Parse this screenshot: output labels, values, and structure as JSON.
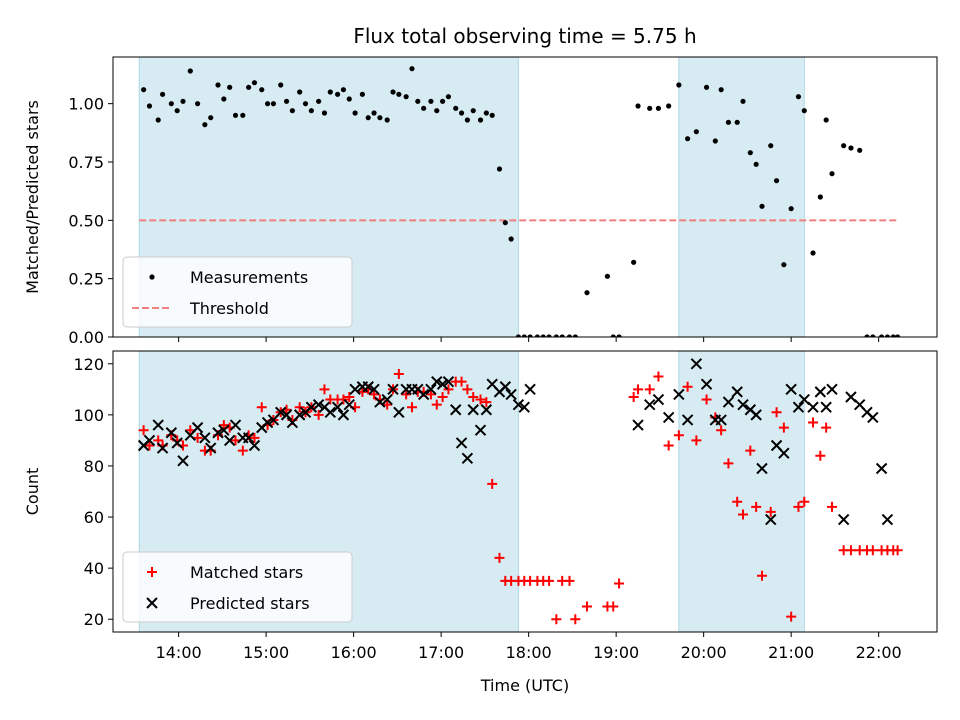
{
  "title": "Flux total observing time = 5.75 h",
  "colors": {
    "shade": "#add8e6",
    "threshold": "#f08080",
    "matched": "#ff0000",
    "predicted": "#000000",
    "measurement": "#000000"
  },
  "chart_data": [
    {
      "type": "scatter",
      "ylabel": "Matched/Predicted stars",
      "ylim": [
        0,
        1.2
      ],
      "xlim": [
        "13:15",
        "22:40"
      ],
      "ytick_values": [
        0.0,
        0.25,
        0.5,
        0.75,
        1.0
      ],
      "ytick_labels": [
        "0.00",
        "0.25",
        "0.50",
        "0.75",
        "1.00"
      ],
      "shaded_intervals": [
        [
          "13:33",
          "17:53"
        ],
        [
          "19:43",
          "21:09"
        ]
      ],
      "threshold": {
        "value": 0.5,
        "from": "13:33",
        "to": "22:13",
        "label": "Threshold"
      },
      "legend": {
        "placement": "lower-left",
        "entries": [
          "Measurements",
          "Threshold"
        ]
      },
      "series": [
        {
          "name": "Measurements",
          "x": [
            "13:36",
            "13:40",
            "13:46",
            "13:49",
            "13:55",
            "13:59",
            "14:03",
            "14:08",
            "14:13",
            "14:18",
            "14:22",
            "14:27",
            "14:31",
            "14:35",
            "14:39",
            "14:44",
            "14:48",
            "14:52",
            "14:57",
            "15:01",
            "15:05",
            "15:10",
            "15:14",
            "15:18",
            "15:23",
            "15:27",
            "15:31",
            "15:36",
            "15:40",
            "15:44",
            "15:49",
            "15:53",
            "15:57",
            "16:01",
            "16:06",
            "16:10",
            "16:14",
            "16:18",
            "16:23",
            "16:27",
            "16:31",
            "16:36",
            "16:40",
            "16:44",
            "16:48",
            "16:53",
            "16:57",
            "17:01",
            "17:05",
            "17:10",
            "17:14",
            "17:18",
            "17:22",
            "17:27",
            "17:31",
            "17:35",
            "17:40",
            "17:44",
            "17:48",
            "17:53",
            "17:57",
            "18:01",
            "18:06",
            "18:10",
            "18:14",
            "18:19",
            "18:23",
            "18:28",
            "18:32",
            "18:40",
            "18:54",
            "18:58",
            "19:02",
            "19:12",
            "19:15",
            "19:23",
            "19:29",
            "19:36",
            "19:43",
            "19:49",
            "19:55",
            "20:02",
            "20:08",
            "20:12",
            "20:17",
            "20:23",
            "20:27",
            "20:32",
            "20:36",
            "20:40",
            "20:46",
            "20:50",
            "20:55",
            "21:00",
            "21:05",
            "21:09",
            "21:15",
            "21:20",
            "21:24",
            "21:28",
            "21:36",
            "21:41",
            "21:47",
            "21:52",
            "21:56",
            "22:02",
            "22:06",
            "22:10",
            "22:13"
          ],
          "y": [
            1.06,
            0.99,
            0.93,
            1.04,
            1.0,
            0.97,
            1.01,
            1.14,
            1.0,
            0.91,
            0.94,
            1.08,
            1.02,
            1.07,
            0.95,
            0.95,
            1.07,
            1.09,
            1.06,
            1.0,
            1.0,
            1.08,
            1.01,
            0.97,
            1.05,
            1.0,
            0.97,
            1.01,
            0.96,
            1.05,
            1.04,
            1.06,
            1.02,
            0.96,
            1.04,
            0.94,
            0.96,
            0.94,
            0.93,
            1.05,
            1.04,
            1.03,
            1.15,
            1.01,
            0.98,
            1.01,
            0.97,
            1.01,
            1.03,
            0.98,
            0.96,
            0.93,
            0.97,
            0.93,
            0.96,
            0.95,
            0.72,
            0.49,
            0.42,
            0.0,
            0.0,
            0.0,
            0.0,
            0.0,
            0.0,
            0.0,
            0.0,
            0.0,
            0.0,
            0.19,
            0.26,
            0.0,
            0.0,
            0.32,
            0.99,
            0.98,
            0.98,
            0.99,
            1.08,
            0.85,
            0.88,
            1.07,
            0.84,
            1.06,
            0.92,
            0.92,
            1.01,
            0.79,
            0.74,
            0.56,
            0.82,
            0.67,
            0.31,
            0.55,
            1.03,
            0.97,
            0.36,
            0.6,
            0.93,
            0.7,
            0.82,
            0.81,
            0.8,
            0.0,
            0.0,
            0.0,
            0.0,
            0.0,
            0.0
          ]
        }
      ]
    },
    {
      "type": "scatter",
      "xlabel": "Time (UTC)",
      "ylabel": "Count",
      "ylim": [
        15,
        125
      ],
      "xlim": [
        "13:15",
        "22:40"
      ],
      "ytick_values": [
        20,
        40,
        60,
        80,
        100,
        120
      ],
      "ytick_labels": [
        "20",
        "40",
        "60",
        "80",
        "100",
        "120"
      ],
      "xtick_values": [
        "14:00",
        "15:00",
        "16:00",
        "17:00",
        "18:00",
        "19:00",
        "20:00",
        "21:00",
        "22:00"
      ],
      "xtick_labels": [
        "14:00",
        "15:00",
        "16:00",
        "17:00",
        "18:00",
        "19:00",
        "20:00",
        "21:00",
        "22:00"
      ],
      "shaded_intervals": [
        [
          "13:33",
          "17:53"
        ],
        [
          "19:43",
          "21:09"
        ]
      ],
      "legend": {
        "placement": "lower-left",
        "entries": [
          "Matched stars",
          "Predicted stars"
        ]
      },
      "series": [
        {
          "name": "Matched stars",
          "marker": "plus",
          "x": [
            "13:36",
            "13:40",
            "13:46",
            "13:49",
            "13:55",
            "13:59",
            "14:03",
            "14:08",
            "14:13",
            "14:18",
            "14:22",
            "14:27",
            "14:31",
            "14:35",
            "14:39",
            "14:44",
            "14:48",
            "14:52",
            "14:57",
            "15:01",
            "15:05",
            "15:10",
            "15:14",
            "15:18",
            "15:23",
            "15:27",
            "15:31",
            "15:36",
            "15:40",
            "15:44",
            "15:49",
            "15:53",
            "15:57",
            "16:01",
            "16:06",
            "16:10",
            "16:14",
            "16:18",
            "16:23",
            "16:27",
            "16:31",
            "16:36",
            "16:40",
            "16:44",
            "16:48",
            "16:53",
            "16:57",
            "17:01",
            "17:05",
            "17:10",
            "17:14",
            "17:18",
            "17:22",
            "17:27",
            "17:31",
            "17:35",
            "17:40",
            "17:44",
            "17:48",
            "17:53",
            "17:57",
            "18:01",
            "18:06",
            "18:10",
            "18:14",
            "18:19",
            "18:23",
            "18:28",
            "18:32",
            "18:40",
            "18:54",
            "18:58",
            "19:02",
            "19:12",
            "19:15",
            "19:23",
            "19:29",
            "19:36",
            "19:43",
            "19:49",
            "19:55",
            "20:02",
            "20:08",
            "20:12",
            "20:17",
            "20:23",
            "20:27",
            "20:32",
            "20:36",
            "20:40",
            "20:46",
            "20:50",
            "20:55",
            "21:00",
            "21:05",
            "21:09",
            "21:15",
            "21:20",
            "21:24",
            "21:28",
            "21:36",
            "21:41",
            "21:47",
            "21:52",
            "21:56",
            "22:02",
            "22:06",
            "22:10",
            "22:13"
          ],
          "y": [
            94,
            88,
            90,
            88,
            92,
            90,
            88,
            94,
            91,
            86,
            86,
            92,
            96,
            95,
            90,
            86,
            92,
            91,
            103,
            96,
            98,
            101,
            102,
            98,
            103,
            101,
            103,
            100,
            110,
            106,
            106,
            106,
            107,
            103,
            109,
            110,
            108,
            106,
            104,
            110,
            116,
            108,
            103,
            109,
            109,
            108,
            104,
            107,
            110,
            113,
            113,
            110,
            107,
            106,
            105,
            73,
            44,
            35,
            35,
            35,
            35,
            35,
            35,
            35,
            35,
            20,
            35,
            35,
            20,
            25,
            25,
            25,
            34,
            107,
            110,
            110,
            115,
            88,
            92,
            111,
            90,
            106,
            99,
            94,
            81,
            66,
            61,
            86,
            64,
            37,
            62,
            101,
            95,
            21,
            64,
            66,
            97,
            84,
            95,
            64,
            47,
            47,
            47,
            47,
            47,
            47,
            47,
            47,
            47
          ]
        },
        {
          "name": "Predicted stars",
          "marker": "x",
          "x": [
            "13:36",
            "13:40",
            "13:46",
            "13:49",
            "13:55",
            "13:59",
            "14:03",
            "14:08",
            "14:13",
            "14:18",
            "14:22",
            "14:27",
            "14:31",
            "14:35",
            "14:39",
            "14:44",
            "14:48",
            "14:52",
            "14:57",
            "15:01",
            "15:05",
            "15:10",
            "15:14",
            "15:18",
            "15:23",
            "15:27",
            "15:31",
            "15:36",
            "15:40",
            "15:44",
            "15:49",
            "15:53",
            "15:57",
            "16:01",
            "16:06",
            "16:10",
            "16:14",
            "16:18",
            "16:23",
            "16:27",
            "16:31",
            "16:36",
            "16:40",
            "16:44",
            "16:48",
            "16:53",
            "16:57",
            "17:01",
            "17:05",
            "17:10",
            "17:14",
            "17:18",
            "17:22",
            "17:27",
            "17:31",
            "17:35",
            "17:40",
            "17:44",
            "17:48",
            "17:53",
            "17:57",
            "18:01",
            "19:15",
            "19:23",
            "19:29",
            "19:36",
            "19:43",
            "19:49",
            "19:55",
            "20:02",
            "20:08",
            "20:12",
            "20:17",
            "20:23",
            "20:27",
            "20:32",
            "20:36",
            "20:40",
            "20:46",
            "20:50",
            "20:55",
            "21:00",
            "21:05",
            "21:09",
            "21:15",
            "21:20",
            "21:24",
            "21:28",
            "21:36",
            "21:41",
            "21:47",
            "21:52",
            "21:56",
            "22:02",
            "22:06"
          ],
          "y": [
            88,
            90,
            96,
            87,
            93,
            89,
            82,
            92,
            95,
            91,
            87,
            93,
            94,
            90,
            96,
            91,
            91,
            88,
            95,
            97,
            98,
            101,
            100,
            97,
            100,
            101,
            103,
            104,
            103,
            101,
            103,
            100,
            104,
            110,
            111,
            111,
            110,
            105,
            106,
            110,
            101,
            110,
            110,
            110,
            108,
            110,
            113,
            112,
            113,
            102,
            89,
            83,
            102,
            94,
            102,
            112,
            109,
            111,
            108,
            104,
            103,
            110,
            96,
            104,
            106,
            99,
            108,
            98,
            120,
            112,
            98,
            98,
            105,
            109,
            104,
            102,
            100,
            79,
            59,
            88,
            85,
            110,
            103,
            106,
            103,
            109,
            103,
            110,
            59,
            107,
            104,
            101,
            99,
            79,
            59
          ]
        }
      ]
    }
  ]
}
